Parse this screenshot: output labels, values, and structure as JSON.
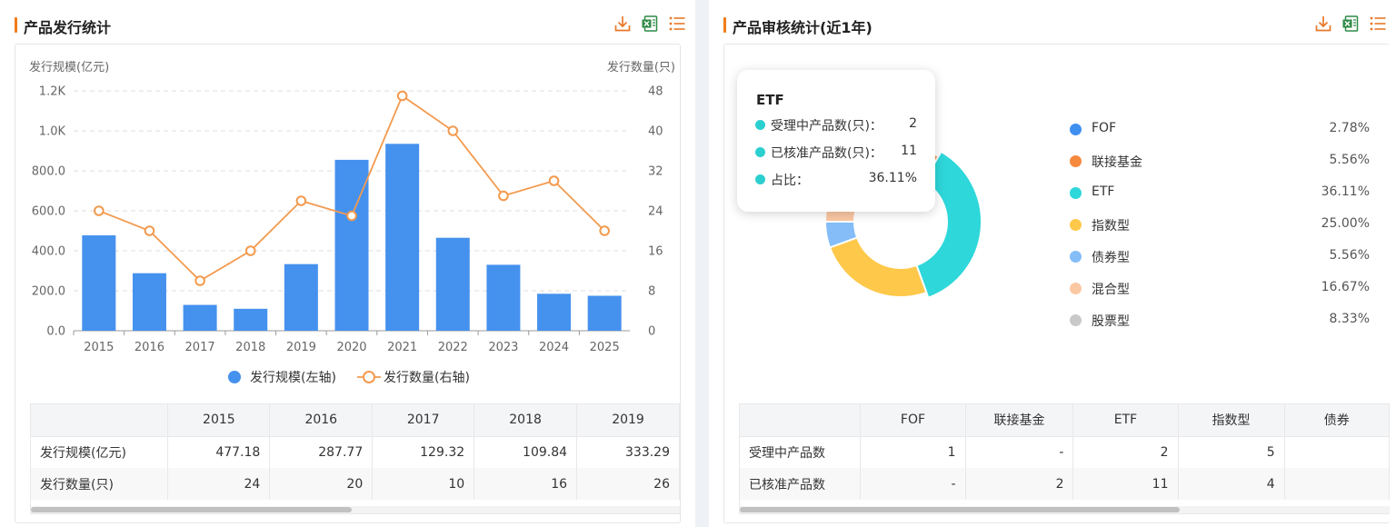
{
  "left_panel": {
    "title": "产品发行统计",
    "tools": [
      "download-icon",
      "excel-icon",
      "list-icon"
    ],
    "left_axis_name": "发行规模(亿元)",
    "right_axis_name": "发行数量(只)",
    "legend": [
      "发行规模(左轴)",
      "发行数量(右轴)"
    ],
    "table": {
      "headers": [
        "",
        "2015",
        "2016",
        "2017",
        "2018",
        "2019"
      ],
      "rows": [
        [
          "发行规模(亿元)",
          "477.18",
          "287.77",
          "129.32",
          "109.84",
          "333.29"
        ],
        [
          "发行数量(只)",
          "24",
          "20",
          "10",
          "16",
          "26"
        ]
      ]
    }
  },
  "right_panel": {
    "title": "产品审核统计(近1年)",
    "tools": [
      "download-icon",
      "excel-icon",
      "list-icon"
    ],
    "tooltip": {
      "title": "ETF",
      "rows": [
        {
          "label": "受理中产品数(只)：",
          "value": "2"
        },
        {
          "label": "已核准产品数(只)：",
          "value": "11"
        },
        {
          "label": "占比：",
          "value": "36.11%"
        }
      ]
    },
    "table": {
      "headers": [
        "",
        "FOF",
        "联接基金",
        "ETF",
        "指数型",
        "债券"
      ],
      "rows": [
        [
          "受理中产品数",
          "1",
          "-",
          "2",
          "5",
          ""
        ],
        [
          "已核准产品数",
          "-",
          "2",
          "11",
          "4",
          ""
        ]
      ]
    }
  },
  "chart_data": [
    {
      "type": "bar",
      "categories": [
        "2015",
        "2016",
        "2017",
        "2018",
        "2019",
        "2020",
        "2021",
        "2022",
        "2023",
        "2024",
        "2025"
      ],
      "series": [
        {
          "name": "发行规模(左轴)",
          "type": "bar",
          "axis": "left",
          "color": "#4591ee",
          "values": [
            477.18,
            287.77,
            129.32,
            109.84,
            333.29,
            855,
            935,
            465,
            330,
            185,
            175
          ]
        },
        {
          "name": "发行数量(右轴)",
          "type": "line",
          "axis": "right",
          "color": "#f39a4e",
          "values": [
            24,
            20,
            10,
            16,
            26,
            23,
            47,
            40,
            27,
            30,
            20
          ]
        }
      ],
      "y_left": {
        "label": "发行规模(亿元)",
        "ticks": [
          "0.0",
          "200.0",
          "400.0",
          "600.0",
          "800.0",
          "1.0K",
          "1.2K"
        ],
        "range": [
          0,
          1200
        ]
      },
      "y_right": {
        "label": "发行数量(只)",
        "ticks": [
          "0",
          "8",
          "16",
          "24",
          "32",
          "40",
          "48"
        ],
        "range": [
          0,
          48
        ]
      },
      "grid": "dashed horizontal",
      "legend_position": "bottom-center"
    },
    {
      "type": "pie",
      "style": "donut",
      "slices": [
        {
          "name": "FOF",
          "value": 2.78,
          "label": "2.78%",
          "color": "#3f8ff0"
        },
        {
          "name": "联接基金",
          "value": 5.56,
          "label": "5.56%",
          "color": "#f5893d"
        },
        {
          "name": "ETF",
          "value": 36.11,
          "label": "36.11%",
          "color": "#2ed7da",
          "highlighted": true
        },
        {
          "name": "指数型",
          "value": 25.0,
          "label": "25.00%",
          "color": "#fec84a"
        },
        {
          "name": "债券型",
          "value": 5.56,
          "label": "5.56%",
          "color": "#84bdf8"
        },
        {
          "name": "混合型",
          "value": 16.67,
          "label": "16.67%",
          "color": "#fbc8a4"
        },
        {
          "name": "股票型",
          "value": 8.33,
          "label": "8.33%",
          "color": "#c9c9c9"
        }
      ],
      "legend_position": "right"
    }
  ]
}
